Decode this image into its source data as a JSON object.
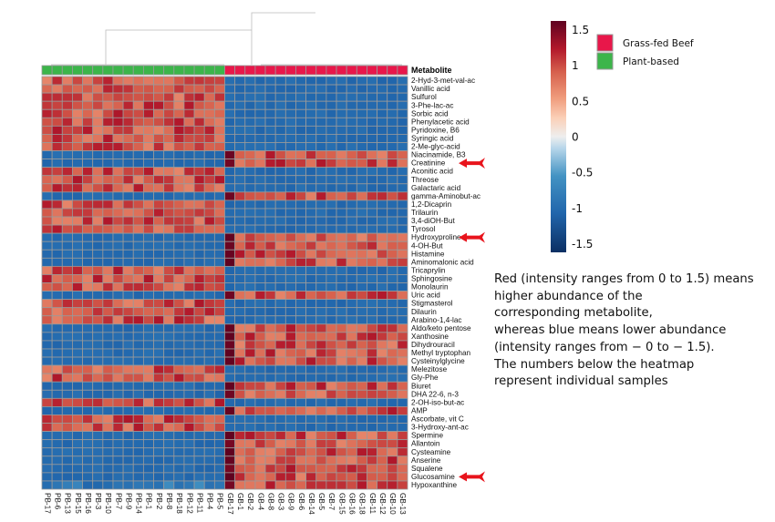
{
  "chart_data": {
    "type": "heatmap",
    "title": "",
    "row_axis_title": "Metabolite",
    "rows": [
      "2-Hyd-3-met-val-ac",
      "Vanillic acid",
      "Sulfurol",
      "3-Phe-lac-ac",
      "Sorbic acid",
      "Phenylacetic acid",
      "Pyridoxine, B6",
      "Syringic acid",
      "2-Me-glyc-acid",
      "Niacinamide, B3",
      "Creatinine",
      "Aconitic acid",
      "Threose",
      "Galactaric acid",
      "gamma-Aminobut-ac",
      "1,2-Dicaprin",
      "Trilaurin",
      "3,4-diOH-But",
      "Tyrosol",
      "Hydroxyproline",
      "4-OH-But",
      "Histamine",
      "Aminomalonic acid",
      "Tricaprylin",
      "Sphingosine",
      "Monolaurin",
      "Uric acid",
      "Stigmasterol",
      "Dilaurin",
      "Arabino-1,4-lac",
      "Aldo/keto pentose",
      "Xanthosine",
      "Dihydrouracil",
      "Methyl tryptophan",
      "Cysteinylglycine",
      "Melezitose",
      "Gly-Phe",
      "Biuret",
      "DHA 22-6, n-3",
      "2-OH-iso-but-ac",
      "AMP",
      "Ascorbate, vit C",
      "3-Hydroxy-ant-ac",
      "Spermine",
      "Allantoin",
      "Cysteamine",
      "Anserine",
      "Squalene",
      "Glucosamine",
      "Hypoxanthine"
    ],
    "columns": [
      "PB-17",
      "PB-6",
      "PB-13",
      "PB-15",
      "PB-16",
      "PB-3",
      "PB-10",
      "PB-7",
      "PB-9",
      "PB-14",
      "PB-1",
      "PB-2",
      "PB-8",
      "PB-18",
      "PB-12",
      "PB-11",
      "PB-4",
      "PB-5",
      "GB-17",
      "GB-1",
      "GB-2",
      "GB-4",
      "GB-8",
      "GB-3",
      "GB-9",
      "GB-6",
      "GB-14",
      "GB-5",
      "GB-7",
      "GB-15",
      "GB-16",
      "GB-18",
      "GB-11",
      "GB-12",
      "GB-10",
      "GB-13"
    ],
    "column_groups": [
      "Plant-based",
      "Plant-based",
      "Plant-based",
      "Plant-based",
      "Plant-based",
      "Plant-based",
      "Plant-based",
      "Plant-based",
      "Plant-based",
      "Plant-based",
      "Plant-based",
      "Plant-based",
      "Plant-based",
      "Plant-based",
      "Plant-based",
      "Plant-based",
      "Plant-based",
      "Plant-based",
      "Grass-fed Beef",
      "Grass-fed Beef",
      "Grass-fed Beef",
      "Grass-fed Beef",
      "Grass-fed Beef",
      "Grass-fed Beef",
      "Grass-fed Beef",
      "Grass-fed Beef",
      "Grass-fed Beef",
      "Grass-fed Beef",
      "Grass-fed Beef",
      "Grass-fed Beef",
      "Grass-fed Beef",
      "Grass-fed Beef",
      "Grass-fed Beef",
      "Grass-fed Beef",
      "Grass-fed Beef",
      "Grass-fed Beef"
    ],
    "plant_based_high_rows": [
      1,
      1,
      1,
      1,
      1,
      1,
      1,
      1,
      1,
      0,
      0,
      1,
      1,
      1,
      0,
      1,
      1,
      1,
      1,
      0,
      0,
      0,
      0,
      1,
      1,
      1,
      0,
      1,
      1,
      1,
      0,
      0,
      0,
      0,
      0,
      1,
      1,
      0,
      0,
      1,
      0,
      1,
      1,
      0,
      0,
      0,
      0,
      0,
      0,
      0
    ],
    "value_note": "Cell intensity: plant-based-high rows ~ +0.9 in PB columns and ~ -0.95 in GB columns; reverse for other rows. GB-17 column is consistently the most extreme (~+1.4 where red). Hypoxanthine row PB cells are lighter blue (~ -0.6 to -0.9).",
    "high_value_approx": 0.9,
    "low_value_approx": -0.95,
    "gb17_high_value_approx": 1.4,
    "color_scale": {
      "min": -1.5,
      "max": 1.5,
      "ticks": [
        1.5,
        1,
        0.5,
        0,
        -0.5,
        -1,
        -1.5
      ],
      "tick_labels": [
        "1.5",
        "1",
        "0.5",
        "0",
        "-0.5",
        "-1",
        "-1.5"
      ],
      "colors": [
        "#053061",
        "#2166ac",
        "#4393c3",
        "#92c5de",
        "#d1e5f0",
        "#f2f2f2",
        "#fddbc7",
        "#f4a582",
        "#d6604d",
        "#b2182b",
        "#67001f"
      ]
    },
    "legend": [
      {
        "label": "Grass-fed Beef",
        "color": "#e8174a"
      },
      {
        "label": "Plant-based",
        "color": "#3cb54a"
      }
    ],
    "highlighted_rows": [
      "Creatinine",
      "Hydroxyproline",
      "Glucosamine"
    ],
    "grid": true
  },
  "annotation": {
    "lines": [
      "Red (intensity ranges from 0 to 1.5) means",
      "higher abundance of the",
      "corresponding metabolite,",
      "whereas blue means lower abundance",
      "(intensity ranges from − 0 to − 1.5).",
      "The numbers below the heatmap",
      "represent individual samples"
    ]
  },
  "colors": {
    "red_cell": "#d6554a",
    "blue_cell": "#3a82be",
    "grid": "#9a9a9a",
    "arrow": "#e8141c"
  }
}
